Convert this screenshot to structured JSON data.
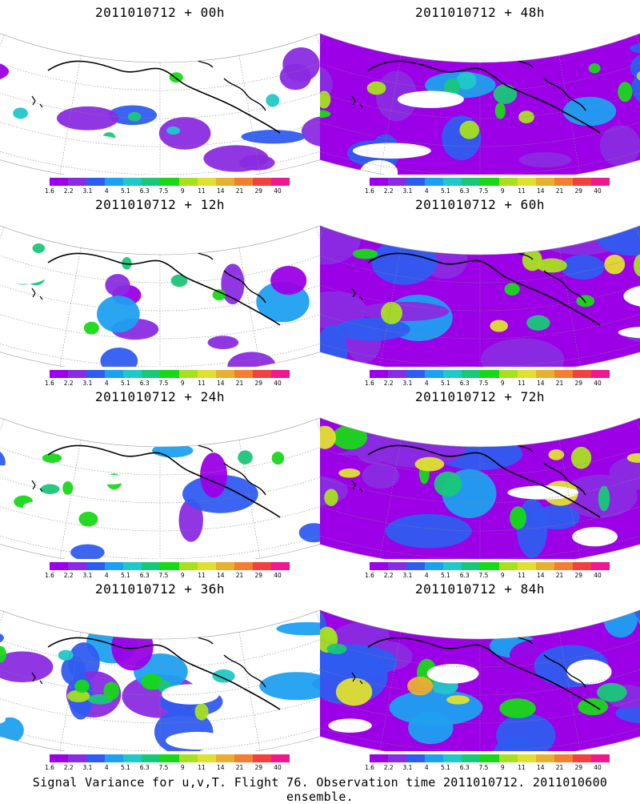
{
  "panels": [
    {
      "id": "00h",
      "title": "2011010712 + 00h",
      "intensity": 0.2
    },
    {
      "id": "48h",
      "title": "2011010712 + 48h",
      "intensity": 0.55
    },
    {
      "id": "12h",
      "title": "2011010712 + 12h",
      "intensity": 0.3
    },
    {
      "id": "60h",
      "title": "2011010712 + 60h",
      "intensity": 0.6
    },
    {
      "id": "24h",
      "title": "2011010712 + 24h",
      "intensity": 0.35
    },
    {
      "id": "72h",
      "title": "2011010712 + 72h",
      "intensity": 0.72
    },
    {
      "id": "36h",
      "title": "2011010712 + 36h",
      "intensity": 0.45
    },
    {
      "id": "84h",
      "title": "2011010712 + 84h",
      "intensity": 0.8
    }
  ],
  "colorbar": {
    "labels": [
      "1.6",
      "2.2",
      "3.1",
      "4",
      "5.1",
      "6.3",
      "7.5",
      "9",
      "11",
      "14",
      "21",
      "29",
      "40"
    ],
    "colors": [
      "#9b00e6",
      "#8a2be2",
      "#2f5cf0",
      "#1ea0f0",
      "#20c8c8",
      "#18c878",
      "#18d818",
      "#a8e020",
      "#e0e030",
      "#e8b030",
      "#f08030",
      "#f04040",
      "#f01890"
    ]
  },
  "caption": "Signal Variance for u,v,T. Flight 76. Observation time 2011010712. 2011010600 ensemble."
}
